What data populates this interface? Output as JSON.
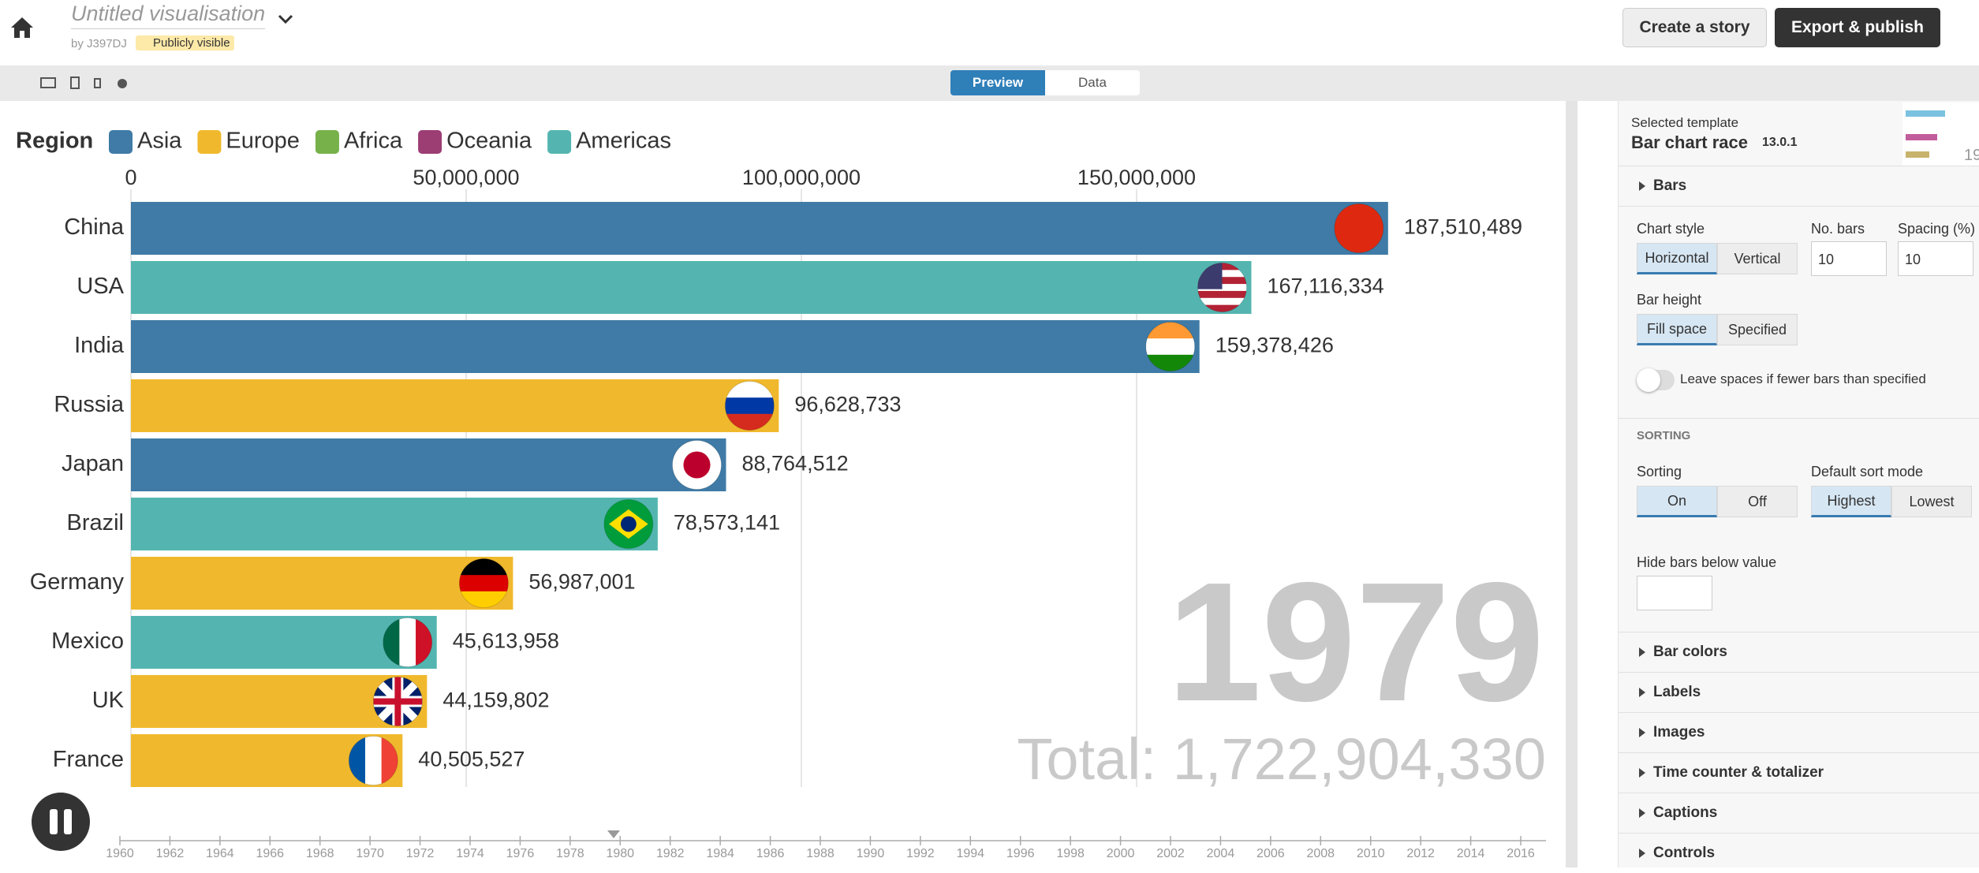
{
  "header": {
    "title": "Untitled visualisation",
    "author": "by J397DJ",
    "visibility": "Publicly visible",
    "create_story": "Create a story",
    "export": "Export & publish"
  },
  "tabs": [
    "Preview",
    "Data"
  ],
  "chart": {
    "type": "bar",
    "orientation": "horizontal",
    "legend_title": "Region",
    "legend": [
      {
        "name": "Asia",
        "color": "#3f7ba6"
      },
      {
        "name": "Europe",
        "color": "#f0b92d"
      },
      {
        "name": "Africa",
        "color": "#77b14a"
      },
      {
        "name": "Oceania",
        "color": "#9c3d74"
      },
      {
        "name": "Americas",
        "color": "#54b5b0"
      }
    ],
    "categories": [
      "China",
      "USA",
      "India",
      "Russia",
      "Japan",
      "Brazil",
      "Germany",
      "Mexico",
      "UK",
      "France"
    ],
    "colors": [
      "#3f7ba6",
      "#54b5b0",
      "#3f7ba6",
      "#f0b92d",
      "#3f7ba6",
      "#54b5b0",
      "#f0b92d",
      "#54b5b0",
      "#f0b92d",
      "#f0b92d"
    ],
    "values": [
      187510489,
      167116334,
      159378426,
      96628733,
      88764512,
      78573141,
      56987001,
      45613958,
      44159802,
      40505527
    ],
    "value_labels": [
      "187,510,489",
      "167,116,334",
      "159,378,426",
      "96,628,733",
      "88,764,512",
      "78,573,141",
      "56,987,001",
      "45,613,958",
      "44,159,802",
      "40,505,527"
    ],
    "xlim": [
      0,
      200000000
    ],
    "xticks": [
      0,
      {
        "value": 50000000,
        "label": "50,000,000"
      },
      {
        "value": 100000000,
        "label": "100,000,000"
      },
      {
        "value": 150000000,
        "label": "150,000,000"
      }
    ],
    "grid": true,
    "counter": "1979",
    "total": "Total: 1,722,904,330",
    "timeline": [
      1960,
      1962,
      1964,
      1966,
      1968,
      1970,
      1972,
      1974,
      1976,
      1978,
      1980,
      1982,
      1984,
      1986,
      1988,
      1990,
      1992,
      1994,
      1996,
      1998,
      2000,
      2002,
      2004,
      2006,
      2008,
      2010,
      2012,
      2014,
      2016
    ]
  },
  "panel": {
    "template_label": "Selected template",
    "template_name": "Bar chart race",
    "template_version": "13.0.1",
    "thumb_text": "19",
    "bars": {
      "title": "Bars",
      "chart_style": {
        "label": "Chart style",
        "options": [
          "Horizontal",
          "Vertical"
        ]
      },
      "no_bars": {
        "label": "No. bars",
        "value": 10
      },
      "spacing": {
        "label": "Spacing (%)",
        "value": 10
      },
      "bar_height": {
        "label": "Bar height",
        "options": [
          "Fill space",
          "Specified"
        ]
      },
      "leave_spaces": "Leave spaces if fewer bars than specified",
      "sorting_heading": "SORTING",
      "sorting": {
        "label": "Sorting",
        "options": [
          "On",
          "Off"
        ]
      },
      "sort_mode": {
        "label": "Default sort mode",
        "options": [
          "Highest",
          "Lowest"
        ]
      },
      "hide_below": "Hide bars below value"
    },
    "collapsed": [
      "Bar colors",
      "Labels",
      "Images",
      "Time counter & totalizer",
      "Captions",
      "Controls"
    ]
  }
}
